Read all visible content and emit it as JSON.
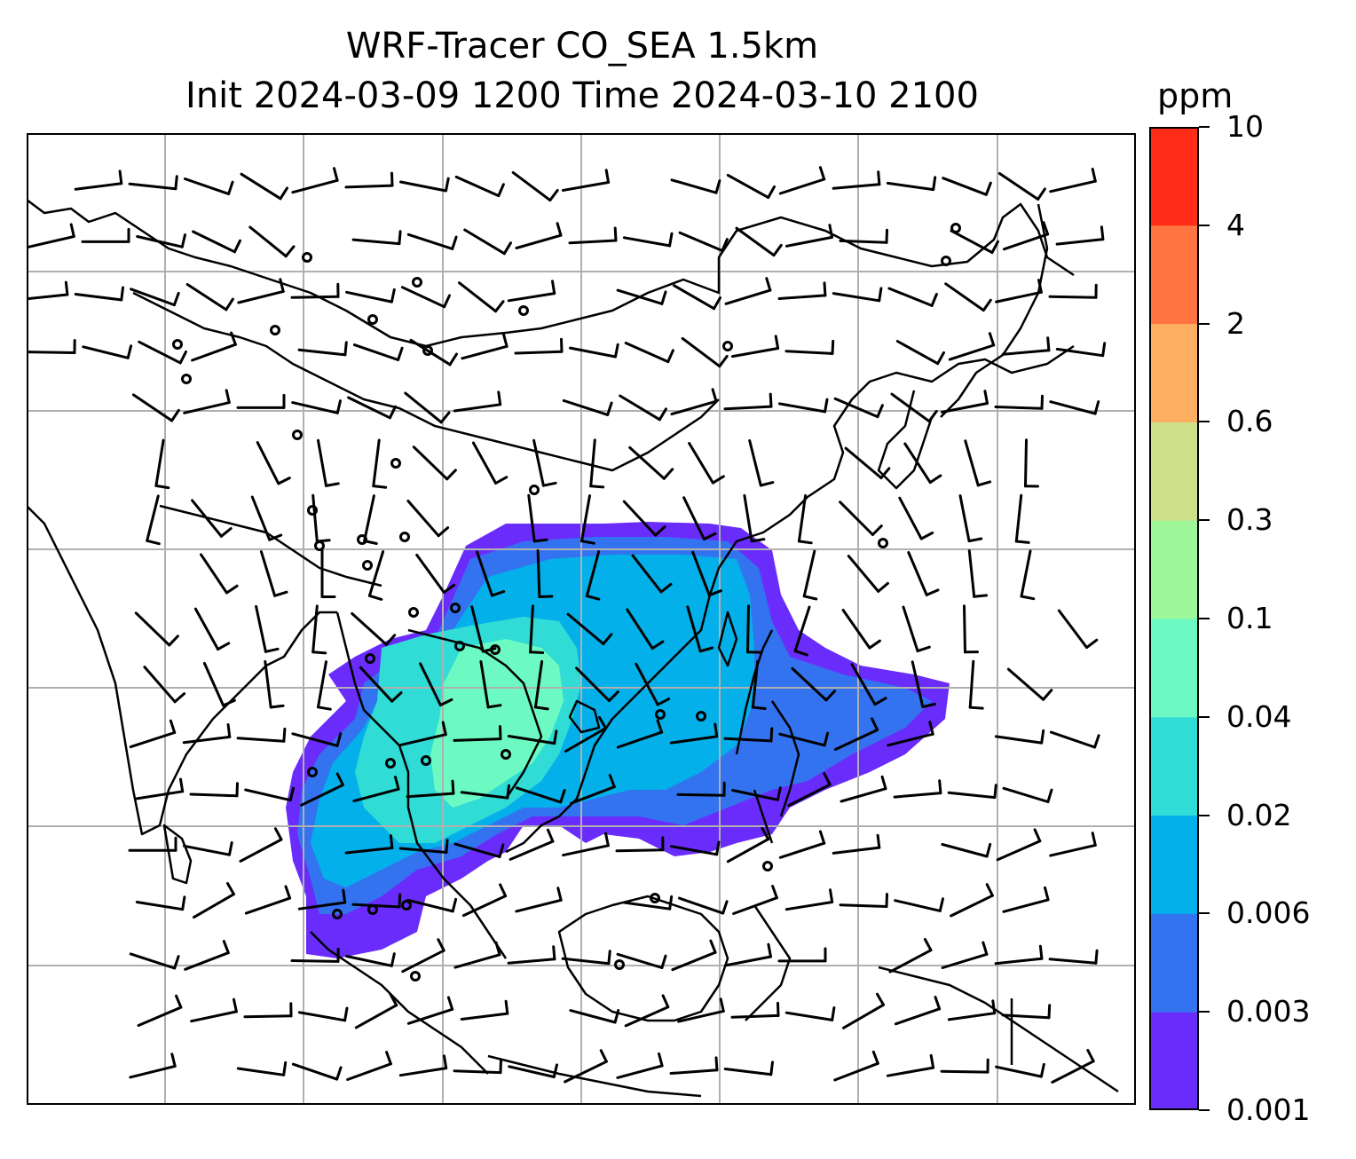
{
  "title": {
    "line1": "WRF-Tracer CO_SEA 1.5km",
    "line2": "Init 2024-03-09 1200 Time 2024-03-10 2100"
  },
  "colorbar": {
    "unit": "ppm",
    "levels": [
      "0.001",
      "0.003",
      "0.006",
      "0.02",
      "0.04",
      "0.1",
      "0.3",
      "0.6",
      "2",
      "4",
      "10"
    ],
    "colors": [
      "#6a2cfb",
      "#3373f0",
      "#04b0e9",
      "#30dcd5",
      "#6cfac2",
      "#9ef798",
      "#d0e08a",
      "#fdaf61",
      "#ff7440",
      "#ff2c17"
    ]
  },
  "map": {
    "gridlines": "on",
    "coastline_color": "#000000",
    "gridline_color": "#b0b0b0",
    "wind_barb_color": "#000000"
  }
}
